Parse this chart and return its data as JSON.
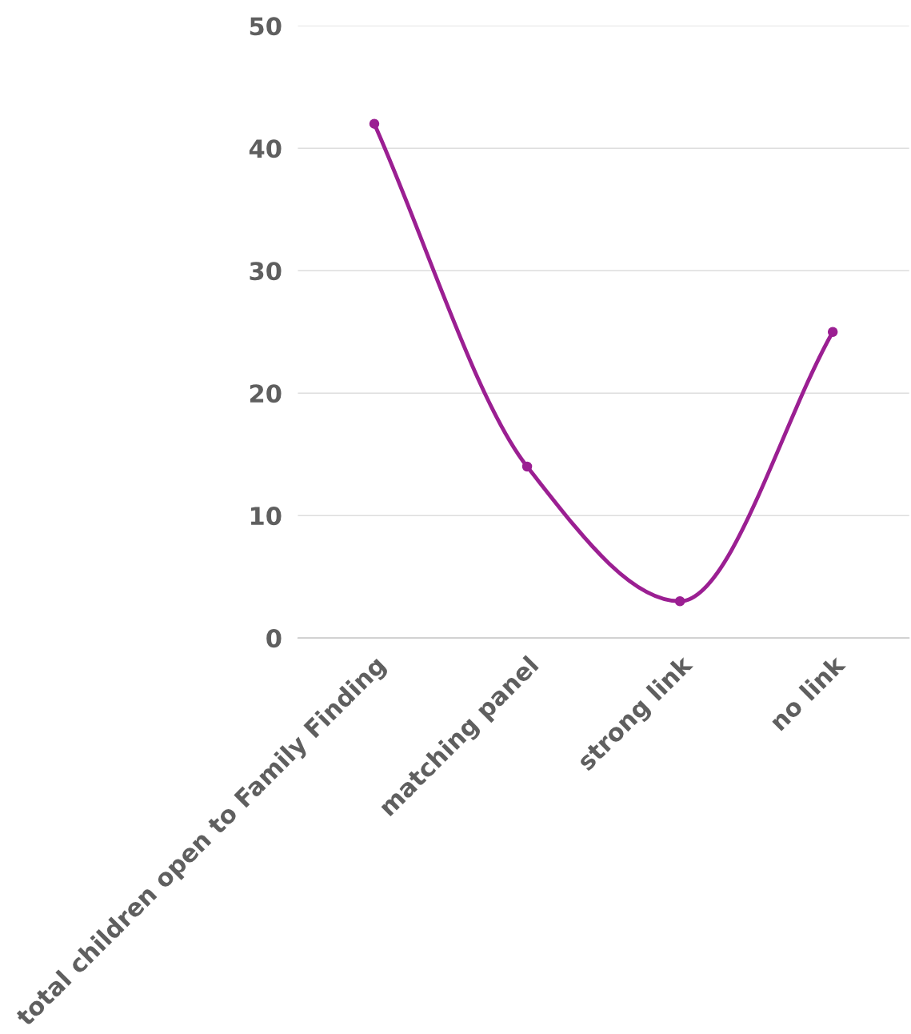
{
  "chart_data": {
    "type": "line",
    "categories": [
      "total children open to Family Finding",
      "matching panel",
      "strong link",
      "no link"
    ],
    "series": [
      {
        "color": "#9b1f92",
        "values": [
          42,
          14,
          3,
          25
        ]
      }
    ],
    "ylim": [
      0,
      50
    ],
    "yticks": [
      0,
      10,
      20,
      30,
      40,
      50
    ],
    "grid": "y",
    "marker": "circle",
    "line_style": "solid"
  }
}
